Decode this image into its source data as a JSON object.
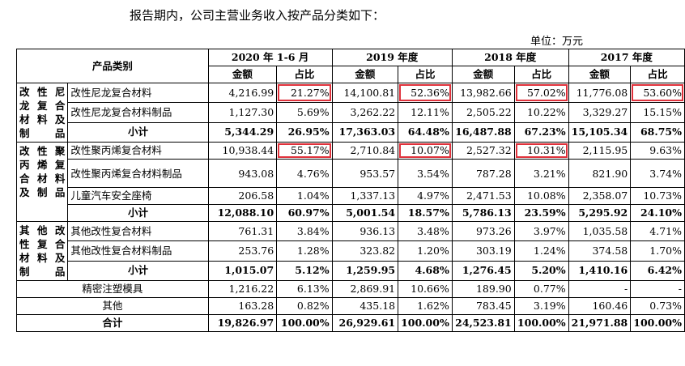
{
  "intro": "报告期内，公司主营业务收入按产品分类如下：",
  "unit": "单位：万元",
  "header": {
    "category": "产品类别",
    "years": [
      "2020 年 1-6 月",
      "2019 年度",
      "2018 年度",
      "2017 年度"
    ],
    "amount": "金额",
    "ratio": "占比"
  },
  "groups": {
    "nylon": [
      "改 性 尼",
      "龙 复 合",
      "材 料 及",
      "制品"
    ],
    "pp": [
      "改 性 聚",
      "丙 烯 复",
      "合 材 料",
      "及制品"
    ],
    "other": [
      "其 他 改",
      "性 复 合",
      "材 料 及",
      "制品"
    ]
  },
  "rows": {
    "r1": {
      "name": "改性尼龙复合材料",
      "v": [
        "4,216.99",
        "21.27%",
        "14,100.81",
        "52.36%",
        "13,982.66",
        "57.02%",
        "11,776.08",
        "53.60%"
      ]
    },
    "r2": {
      "name": "改性尼龙复合材料制品",
      "v": [
        "1,127.30",
        "5.69%",
        "3,262.22",
        "12.11%",
        "2,505.22",
        "10.22%",
        "3,329.27",
        "15.15%"
      ]
    },
    "r3": {
      "name": "小计",
      "v": [
        "5,344.29",
        "26.95%",
        "17,363.03",
        "64.48%",
        "16,487.88",
        "67.23%",
        "15,105.34",
        "68.75%"
      ]
    },
    "r4": {
      "name": "改性聚丙烯复合材料",
      "v": [
        "10,938.44",
        "55.17%",
        "2,710.84",
        "10.07%",
        "2,527.32",
        "10.31%",
        "2,115.95",
        "9.63%"
      ]
    },
    "r5": {
      "name": "改性聚丙烯复合材料制品",
      "v": [
        "943.08",
        "4.76%",
        "953.57",
        "3.54%",
        "787.28",
        "3.21%",
        "821.90",
        "3.74%"
      ]
    },
    "r6": {
      "name": "儿童汽车安全座椅",
      "v": [
        "206.58",
        "1.04%",
        "1,337.13",
        "4.97%",
        "2,471.53",
        "10.08%",
        "2,358.07",
        "10.73%"
      ]
    },
    "r7": {
      "name": "小计",
      "v": [
        "12,088.10",
        "60.97%",
        "5,001.54",
        "18.57%",
        "5,786.13",
        "23.59%",
        "5,295.92",
        "24.10%"
      ]
    },
    "r8": {
      "name": "其他改性复合材料",
      "v": [
        "761.31",
        "3.84%",
        "936.13",
        "3.48%",
        "973.26",
        "3.97%",
        "1,035.58",
        "4.71%"
      ]
    },
    "r9": {
      "name": "其他改性复合材料制品",
      "v": [
        "253.76",
        "1.28%",
        "323.82",
        "1.20%",
        "303.19",
        "1.24%",
        "374.58",
        "1.70%"
      ]
    },
    "r10": {
      "name": "小计",
      "v": [
        "1,015.07",
        "5.12%",
        "1,259.95",
        "4.68%",
        "1,276.45",
        "5.20%",
        "1,410.16",
        "6.42%"
      ]
    },
    "r11": {
      "name": "精密注塑模具",
      "v": [
        "1,216.22",
        "6.13%",
        "2,869.91",
        "10.66%",
        "189.90",
        "0.77%",
        "-",
        "-"
      ]
    },
    "r12": {
      "name": "其他",
      "v": [
        "163.28",
        "0.82%",
        "435.18",
        "1.62%",
        "783.45",
        "3.19%",
        "160.46",
        "0.73%"
      ]
    },
    "r13": {
      "name": "合计",
      "v": [
        "19,826.97",
        "100.00%",
        "26,929.61",
        "100.00%",
        "24,523.81",
        "100.00%",
        "21,971.88",
        "100.00%"
      ]
    }
  },
  "highlight_color": "#e0313b"
}
